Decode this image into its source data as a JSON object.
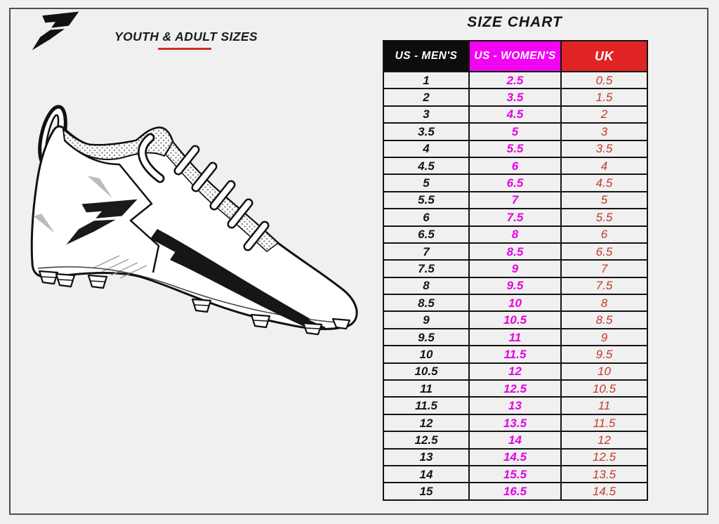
{
  "header": {
    "brand": "Phenom",
    "section_heading": "YOUTH & ADULT SIZES",
    "chart_title": "SIZE CHART"
  },
  "illustration": {
    "name": "football-cleat-line-drawing",
    "features": [
      "heel pull loop",
      "dotted mesh collar",
      "phenom logo on side",
      "lace straps",
      "two black side stripes",
      "cleat studs"
    ]
  },
  "chart_data": {
    "type": "table",
    "title": "SIZE CHART",
    "columns": [
      "US - MEN'S",
      "US - WOMEN'S",
      "UK"
    ],
    "rows": [
      [
        "1",
        "2.5",
        "0.5"
      ],
      [
        "2",
        "3.5",
        "1.5"
      ],
      [
        "3",
        "4.5",
        "2"
      ],
      [
        "3.5",
        "5",
        "3"
      ],
      [
        "4",
        "5.5",
        "3.5"
      ],
      [
        "4.5",
        "6",
        "4"
      ],
      [
        "5",
        "6.5",
        "4.5"
      ],
      [
        "5.5",
        "7",
        "5"
      ],
      [
        "6",
        "7.5",
        "5.5"
      ],
      [
        "6.5",
        "8",
        "6"
      ],
      [
        "7",
        "8.5",
        "6.5"
      ],
      [
        "7.5",
        "9",
        "7"
      ],
      [
        "8",
        "9.5",
        "7.5"
      ],
      [
        "8.5",
        "10",
        "8"
      ],
      [
        "9",
        "10.5",
        "8.5"
      ],
      [
        "9.5",
        "11",
        "9"
      ],
      [
        "10",
        "11.5",
        "9.5"
      ],
      [
        "10.5",
        "12",
        "10"
      ],
      [
        "11",
        "12.5",
        "10.5"
      ],
      [
        "11.5",
        "13",
        "11"
      ],
      [
        "12",
        "13.5",
        "11.5"
      ],
      [
        "12.5",
        "14",
        "12"
      ],
      [
        "13",
        "14.5",
        "12.5"
      ],
      [
        "14",
        "15.5",
        "13.5"
      ],
      [
        "15",
        "16.5",
        "14.5"
      ]
    ]
  },
  "colors": {
    "page_bg": "#f0f0f0",
    "frame_border": "#4e4e4e",
    "table_border": "#141414",
    "header_text": "#ffffff",
    "header_mens_bg": "#0d0d0d",
    "header_womens_bg": "#f203f2",
    "header_uk_bg": "#e02424",
    "mens_text": "#141414",
    "womens_text": "#e303e3",
    "uk_text": "#c23a2b",
    "underline": "#cf3028"
  }
}
